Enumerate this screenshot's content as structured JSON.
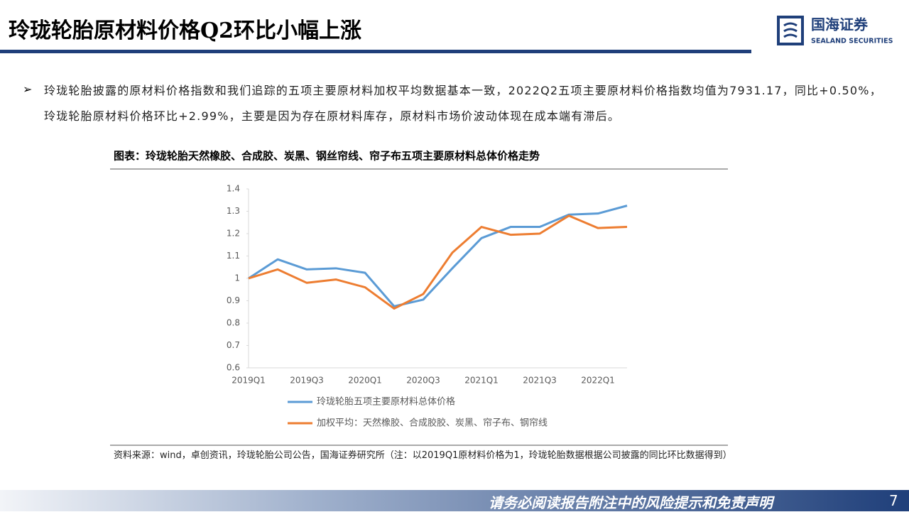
{
  "header": {
    "title": "玲珑轮胎原材料价格Q2环比小幅上涨",
    "logo_name": "国海证券",
    "logo_subtitle": "SEALAND SECURITIES"
  },
  "bullet": "玲珑轮胎披露的原材料价格指数和我们追踪的五项主要原材料加权平均数据基本一致，2022Q2五项主要原材料价格指数均值为7931.17，同比+0.50%，玲珑轮胎原材料价格环比+2.99%，主要是因为存在原材料库存，原材料市场价波动体现在成本端有滞后。",
  "chart_data": {
    "type": "line",
    "title": "图表：玲珑轮胎天然橡胶、合成胶、炭黑、钢丝帘线、帘子布五项主要原材料总体价格走势",
    "categories": [
      "2019Q1",
      null,
      "2019Q3",
      null,
      "2020Q1",
      null,
      "2020Q3",
      null,
      "2021Q1",
      null,
      "2021Q3",
      null,
      "2022Q1",
      null
    ],
    "series": [
      {
        "name": "玲珑轮胎五项主要原材料总体价格",
        "color": "#5b9bd5",
        "values": [
          1.0,
          1.085,
          1.04,
          1.045,
          1.025,
          0.875,
          0.905,
          1.045,
          1.18,
          1.23,
          1.23,
          1.285,
          1.29,
          1.325
        ]
      },
      {
        "name": "加权平均：天然橡胶、合成胶胶、炭黑、帘子布、钢帘线",
        "color": "#ed7d31",
        "values": [
          1.0,
          1.04,
          0.98,
          0.995,
          0.96,
          0.865,
          0.93,
          1.115,
          1.23,
          1.195,
          1.2,
          1.28,
          1.225,
          1.23
        ]
      }
    ],
    "ylim": [
      0.6,
      1.4
    ],
    "yticks": [
      0.6,
      0.7,
      0.8,
      0.9,
      1,
      1.1,
      1.2,
      1.3,
      1.4
    ],
    "grid": false
  },
  "source": "资料来源：wind，卓创资讯，玲珑轮胎公司公告，国海证券研究所（注：以2019Q1原材料价格为1，玲珑轮胎数据根据公司披露的同比环比数据得到）",
  "footer": "请务必阅读报告附注中的风险提示和免责声明",
  "page_number": "7"
}
